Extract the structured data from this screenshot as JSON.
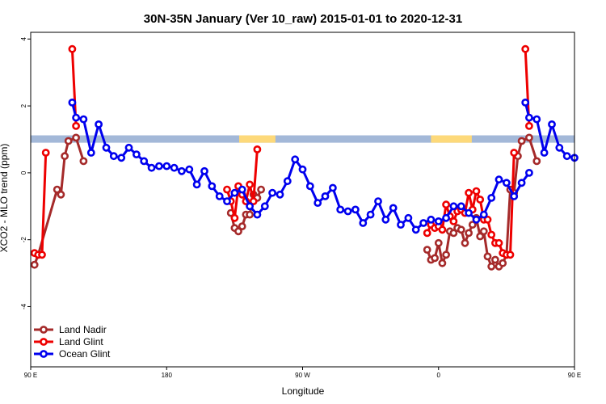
{
  "chart_data": {
    "type": "line",
    "title": "30N-35N January (Ver 10_raw)   2015-01-01 to 2020-12-31",
    "xlabel": "Longitude",
    "ylabel": "XCO2 - MLO trend (ppm)",
    "xlim": [
      90,
      450
    ],
    "ylim": [
      -5.8,
      4.2
    ],
    "xticks": [
      {
        "value": 90,
        "label": "90 E"
      },
      {
        "value": 180,
        "label": "180"
      },
      {
        "value": 270,
        "label": "90 W"
      },
      {
        "value": 360,
        "label": "0"
      },
      {
        "value": 450,
        "label": "90 E"
      },
      {
        "value": 540,
        "label": "180"
      }
    ],
    "yticks": [
      {
        "value": -4,
        "label": "-4"
      },
      {
        "value": -2,
        "label": "-2"
      },
      {
        "value": 0,
        "label": "0"
      },
      {
        "value": 2,
        "label": "2"
      },
      {
        "value": 4,
        "label": "4"
      }
    ],
    "legend_position": "bottom-left",
    "surface_band": {
      "y_range": [
        0.9,
        1.12
      ],
      "ocean_color": "#a3b8d8",
      "land_color": "#fdd97a",
      "land_segments": [
        [
          228,
          252
        ],
        [
          355,
          382
        ]
      ]
    },
    "series": [
      {
        "name": "Land Nadir",
        "color": "#a52a2a",
        "segments": [
          [
            [
              92.5,
              -2.75
            ],
            [
              95,
              -2.45
            ],
            [
              107.5,
              -0.5
            ],
            [
              110,
              -0.65
            ],
            [
              112.5,
              0.5
            ],
            [
              115,
              0.95
            ],
            [
              120,
              1.05
            ],
            [
              125,
              0.35
            ]
          ],
          [
            [
              222.5,
              -1.2
            ],
            [
              225,
              -1.65
            ],
            [
              227.5,
              -1.75
            ],
            [
              230,
              -1.6
            ],
            [
              232.5,
              -1.25
            ],
            [
              235,
              -1.25
            ],
            [
              237.5,
              -0.65
            ],
            [
              240,
              -0.75
            ],
            [
              242.5,
              -0.5
            ]
          ],
          [
            [
              352.5,
              -2.3
            ],
            [
              355,
              -2.6
            ],
            [
              357.5,
              -2.55
            ],
            [
              360,
              -2.1
            ],
            [
              362.5,
              -2.7
            ],
            [
              365,
              -2.45
            ],
            [
              367.5,
              -1.75
            ],
            [
              370,
              -1.8
            ],
            [
              372.5,
              -1.65
            ],
            [
              375,
              -1.7
            ],
            [
              377.5,
              -2.1
            ],
            [
              380,
              -1.8
            ],
            [
              382.5,
              -1.55
            ],
            [
              385,
              -1.35
            ],
            [
              387.5,
              -1.9
            ],
            [
              390,
              -1.75
            ],
            [
              392.5,
              -2.5
            ],
            [
              395,
              -2.8
            ],
            [
              397.5,
              -2.6
            ],
            [
              400,
              -2.8
            ],
            [
              402.5,
              -2.7
            ],
            [
              405,
              -2.45
            ],
            [
              407.5,
              -0.5
            ],
            [
              410,
              -0.6
            ],
            [
              412.5,
              0.5
            ],
            [
              415,
              0.95
            ],
            [
              420,
              1.05
            ],
            [
              425,
              0.35
            ]
          ]
        ]
      },
      {
        "name": "Land Glint",
        "color": "#ee0000",
        "segments": [
          [
            [
              92.5,
              -2.4
            ],
            [
              95,
              -2.45
            ],
            [
              97.5,
              -2.45
            ],
            [
              100,
              0.6
            ]
          ],
          [
            [
              117.5,
              3.7
            ],
            [
              120,
              1.4
            ]
          ],
          [
            [
              220,
              -0.5
            ],
            [
              222.5,
              -0.85
            ],
            [
              225,
              -1.35
            ],
            [
              227.5,
              -0.4
            ],
            [
              230,
              -0.65
            ],
            [
              232.5,
              -0.85
            ],
            [
              235,
              -0.35
            ],
            [
              237.5,
              -0.85
            ],
            [
              240,
              0.7
            ]
          ],
          [
            [
              352.5,
              -1.8
            ],
            [
              355,
              -1.55
            ],
            [
              357.5,
              -1.65
            ],
            [
              360,
              -1.6
            ],
            [
              362.5,
              -1.7
            ],
            [
              365,
              -0.95
            ],
            [
              367.5,
              -1.3
            ],
            [
              370,
              -1.45
            ],
            [
              372.5,
              -1.15
            ],
            [
              375,
              -1.1
            ],
            [
              377.5,
              -1.2
            ],
            [
              380,
              -0.6
            ],
            [
              382.5,
              -1.1
            ],
            [
              385,
              -0.55
            ],
            [
              387.5,
              -0.8
            ],
            [
              390,
              -1.4
            ],
            [
              392.5,
              -1.4
            ],
            [
              395,
              -1.85
            ],
            [
              397.5,
              -2.1
            ],
            [
              400,
              -2.1
            ],
            [
              402.5,
              -2.4
            ],
            [
              405,
              -2.45
            ],
            [
              407.5,
              -2.45
            ],
            [
              410,
              0.6
            ]
          ],
          [
            [
              417.5,
              3.7
            ],
            [
              420,
              1.4
            ]
          ]
        ]
      },
      {
        "name": "Ocean Glint",
        "color": "#0000ee",
        "segments": [
          [
            [
              117.5,
              2.1
            ],
            [
              120,
              1.65
            ],
            [
              125,
              1.6
            ],
            [
              130,
              0.6
            ],
            [
              135,
              1.45
            ],
            [
              140,
              0.75
            ],
            [
              145,
              0.5
            ],
            [
              150,
              0.45
            ],
            [
              155,
              0.75
            ],
            [
              160,
              0.55
            ],
            [
              165,
              0.35
            ],
            [
              170,
              0.15
            ],
            [
              175,
              0.2
            ],
            [
              180,
              0.2
            ],
            [
              185,
              0.15
            ],
            [
              190,
              0.05
            ],
            [
              195,
              0.1
            ],
            [
              200,
              -0.35
            ],
            [
              205,
              0.05
            ],
            [
              210,
              -0.4
            ],
            [
              215,
              -0.7
            ],
            [
              220,
              -0.85
            ],
            [
              225,
              -0.6
            ],
            [
              230,
              -0.5
            ],
            [
              235,
              -1.0
            ],
            [
              240,
              -1.25
            ],
            [
              245,
              -1.0
            ],
            [
              250,
              -0.6
            ],
            [
              255,
              -0.65
            ],
            [
              260,
              -0.25
            ],
            [
              265,
              0.4
            ],
            [
              270,
              0.1
            ],
            [
              275,
              -0.4
            ],
            [
              280,
              -0.9
            ],
            [
              285,
              -0.7
            ],
            [
              290,
              -0.45
            ],
            [
              295,
              -1.1
            ],
            [
              300,
              -1.15
            ],
            [
              305,
              -1.1
            ],
            [
              310,
              -1.5
            ],
            [
              315,
              -1.25
            ],
            [
              320,
              -0.85
            ],
            [
              325,
              -1.4
            ],
            [
              330,
              -1.05
            ],
            [
              335,
              -1.55
            ],
            [
              340,
              -1.35
            ],
            [
              345,
              -1.7
            ],
            [
              350,
              -1.5
            ],
            [
              355,
              -1.4
            ],
            [
              360,
              -1.45
            ],
            [
              365,
              -1.35
            ],
            [
              370,
              -1.0
            ],
            [
              375,
              -1.0
            ],
            [
              380,
              -1.2
            ],
            [
              385,
              -1.4
            ],
            [
              390,
              -1.25
            ],
            [
              395,
              -0.75
            ],
            [
              400,
              -0.2
            ],
            [
              405,
              -0.3
            ],
            [
              410,
              -0.7
            ],
            [
              415,
              -0.3
            ],
            [
              420,
              0.0
            ]
          ],
          [
            [
              417.5,
              2.1
            ],
            [
              420,
              1.65
            ],
            [
              425,
              1.6
            ],
            [
              430,
              0.6
            ],
            [
              435,
              1.45
            ],
            [
              440,
              0.75
            ],
            [
              445,
              0.5
            ],
            [
              450,
              0.45
            ]
          ]
        ]
      }
    ]
  }
}
